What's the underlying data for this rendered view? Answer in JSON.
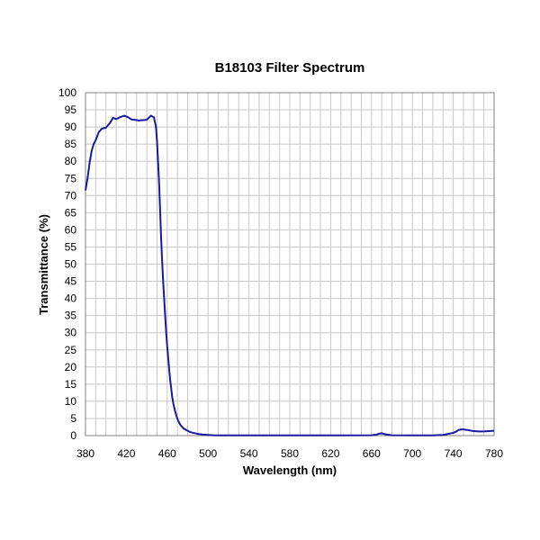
{
  "chart_data": {
    "type": "line",
    "title": "B18103 Filter  Spectrum",
    "xlabel": "Wavelength (nm)",
    "ylabel": "Transmittance (%)",
    "xlim": [
      380,
      780
    ],
    "ylim": [
      0,
      100
    ],
    "x_ticks": [
      380,
      420,
      460,
      500,
      540,
      580,
      620,
      660,
      700,
      740,
      780
    ],
    "y_ticks": [
      0,
      5,
      10,
      15,
      20,
      25,
      30,
      35,
      40,
      45,
      50,
      55,
      60,
      65,
      70,
      75,
      80,
      85,
      90,
      95,
      100
    ],
    "x_minor_step": 10,
    "grid": true,
    "line_color": "#1a1aa0",
    "series": [
      {
        "x": [
          380,
          382,
          384,
          386,
          388,
          390,
          393,
          396,
          400,
          404,
          407,
          410,
          414,
          418,
          422,
          425,
          428,
          432,
          436,
          440,
          444,
          447,
          449,
          450,
          451,
          452,
          453,
          454,
          455,
          456,
          457,
          458,
          459,
          460,
          461,
          462,
          463,
          464,
          465,
          466,
          467,
          468,
          469,
          470,
          471,
          472,
          473,
          474,
          475,
          476,
          477,
          478,
          480,
          482,
          484,
          487,
          490,
          495,
          500,
          505,
          510,
          520,
          540,
          580,
          620,
          660,
          665,
          668,
          670,
          672,
          675,
          680,
          700,
          720,
          730,
          735,
          740,
          743,
          745,
          748,
          750,
          752,
          755,
          758,
          760,
          765,
          770,
          775,
          780
        ],
        "y": [
          71.5,
          75,
          79.5,
          83,
          85,
          86.2,
          88.5,
          89.5,
          89.8,
          91.2,
          92.7,
          92.3,
          92.9,
          93.3,
          92.8,
          92.2,
          92.1,
          91.9,
          92,
          92.1,
          93.3,
          92.8,
          90,
          86,
          80,
          74,
          66,
          58,
          51,
          45,
          40,
          35,
          30,
          26,
          22.5,
          19,
          16,
          13.5,
          11,
          9.3,
          8,
          6.8,
          5.8,
          4.9,
          4.2,
          3.6,
          3.1,
          2.7,
          2.4,
          2.1,
          1.9,
          1.7,
          1.4,
          1.1,
          0.9,
          0.7,
          0.5,
          0.3,
          0.2,
          0.1,
          0.05,
          0.05,
          0.05,
          0.05,
          0.05,
          0.1,
          0.3,
          0.6,
          0.7,
          0.5,
          0.3,
          0.1,
          0.05,
          0.05,
          0.2,
          0.5,
          0.8,
          1.2,
          1.6,
          1.8,
          1.8,
          1.7,
          1.6,
          1.4,
          1.3,
          1.2,
          1.2,
          1.3,
          1.4
        ]
      }
    ]
  }
}
